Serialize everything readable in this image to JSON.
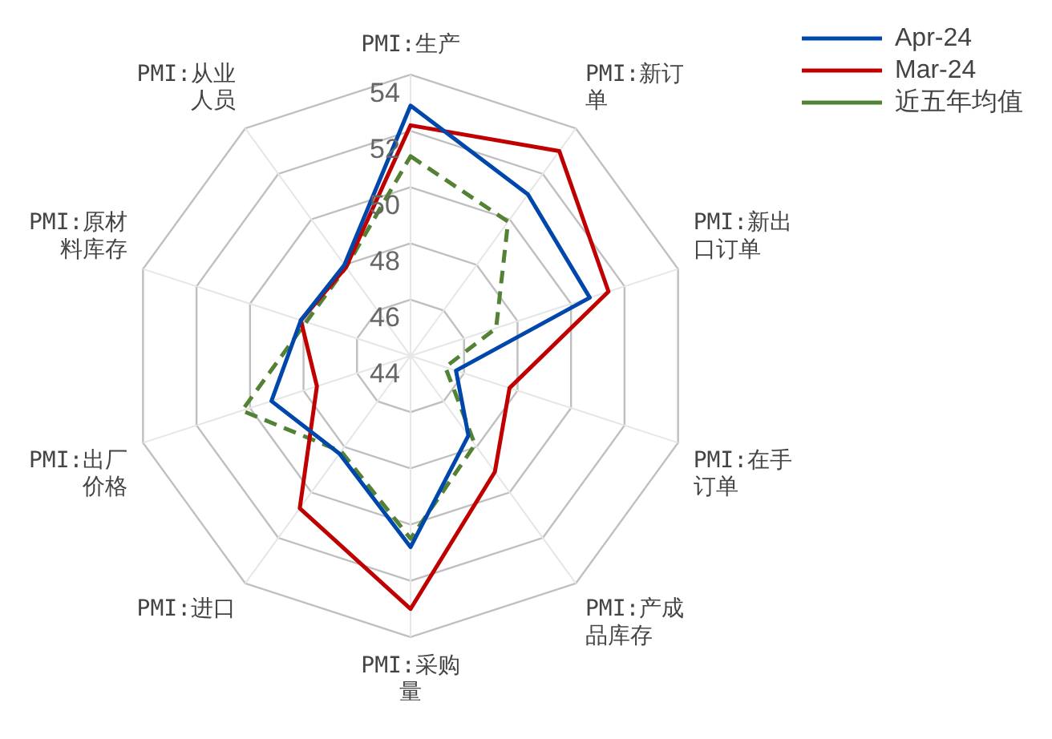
{
  "chart_data": {
    "type": "radar",
    "categories": [
      "PMI:生产",
      "PMI:新订单",
      "PMI:新出口订单",
      "PMI:在手订单",
      "PMI:产成品库存",
      "PMI:采购量",
      "PMI:进口",
      "PMI:出厂价格",
      "PMI:原材料库存",
      "PMI:从业人员"
    ],
    "series": [
      {
        "name": "Apr-24",
        "color": "#0047ab",
        "values": [
          52.9,
          51.1,
          50.7,
          45.7,
          47.5,
          50.8,
          48.3,
          49.2,
          48.1,
          48.0
        ]
      },
      {
        "name": "Mar-24",
        "color": "#c00000",
        "values": [
          52.2,
          53.0,
          51.4,
          47.7,
          49.1,
          53.0,
          50.7,
          47.5,
          48.1,
          47.9
        ]
      },
      {
        "name": "近五年均值",
        "color": "#548235",
        "line_style": "dashed",
        "values": [
          51.1,
          49.9,
          47.2,
          45.3,
          47.9,
          50.5,
          48.2,
          50.3,
          47.9,
          47.9
        ]
      }
    ],
    "ylim": [
      44,
      54
    ],
    "yticks": [
      44,
      46,
      48,
      50,
      52,
      54
    ],
    "grid": true,
    "legend": "top right",
    "marker": "none",
    "line_style": "solid"
  }
}
